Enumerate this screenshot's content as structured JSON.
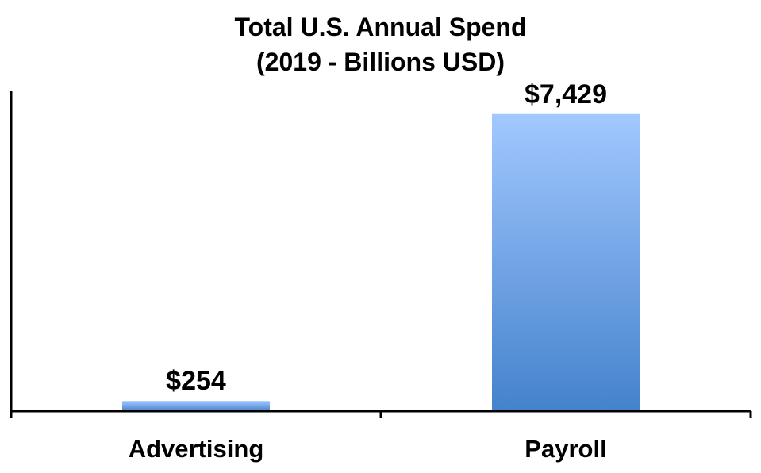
{
  "chart_data": {
    "type": "bar",
    "title": "Total U.S. Annual Spend",
    "subtitle": "(2019 - Billions USD)",
    "categories": [
      "Advertising",
      "Payroll"
    ],
    "values": [
      254,
      7429
    ],
    "value_labels": [
      "$254",
      "$7,429"
    ],
    "xlabel": "",
    "ylabel": "",
    "ylim": [
      0,
      8000
    ],
    "grid": false,
    "legend": "none",
    "colors": {
      "bar_top": "#a2c8ff",
      "bar_bottom": "#4482cc",
      "axis": "#000000"
    }
  }
}
